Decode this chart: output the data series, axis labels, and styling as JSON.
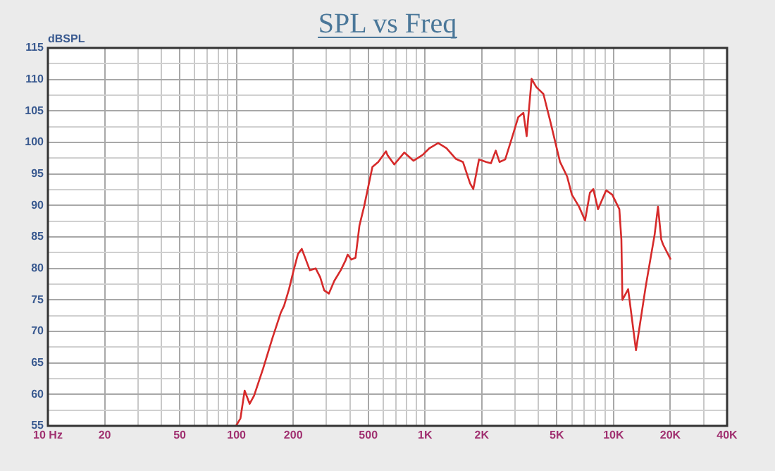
{
  "chart_data": {
    "type": "line",
    "title": "SPL vs Freq",
    "ylabel": "dBSPL",
    "log": "x",
    "grid": true,
    "legend": false,
    "xlim": [
      10,
      40000
    ],
    "ylim": [
      55,
      115
    ],
    "xticks": [
      {
        "value": 10,
        "label": "10 Hz"
      },
      20,
      {
        "value": 30,
        "label": null
      },
      {
        "value": 40,
        "label": null
      },
      50,
      {
        "value": 60,
        "label": null
      },
      {
        "value": 70,
        "label": null
      },
      {
        "value": 80,
        "label": null
      },
      {
        "value": 90,
        "label": null
      },
      100,
      200,
      {
        "value": 300,
        "label": null
      },
      {
        "value": 400,
        "label": null
      },
      500,
      {
        "value": 600,
        "label": null
      },
      {
        "value": 700,
        "label": null
      },
      {
        "value": 800,
        "label": null
      },
      {
        "value": 900,
        "label": null
      },
      {
        "value": 1000,
        "label": "1K"
      },
      {
        "value": 2000,
        "label": "2K"
      },
      {
        "value": 3000,
        "label": null
      },
      {
        "value": 4000,
        "label": null
      },
      {
        "value": 5000,
        "label": "5K"
      },
      {
        "value": 6000,
        "label": null
      },
      {
        "value": 7000,
        "label": null
      },
      {
        "value": 8000,
        "label": null
      },
      {
        "value": 9000,
        "label": null
      },
      {
        "value": 10000,
        "label": "10K"
      },
      {
        "value": 20000,
        "label": "20K"
      },
      {
        "value": 30000,
        "label": null
      },
      {
        "value": 40000,
        "label": "40K"
      }
    ],
    "yticks": [
      55,
      {
        "value": 57.5,
        "label": null
      },
      60,
      {
        "value": 62.5,
        "label": null
      },
      65,
      {
        "value": 67.5,
        "label": null
      },
      70,
      {
        "value": 72.5,
        "label": null
      },
      75,
      {
        "value": 77.5,
        "label": null
      },
      80,
      {
        "value": 82.5,
        "label": null
      },
      85,
      {
        "value": 87.5,
        "label": null
      },
      90,
      {
        "value": 92.5,
        "label": null
      },
      95,
      {
        "value": 97.5,
        "label": null
      },
      100,
      {
        "value": 102.5,
        "label": null
      },
      105,
      {
        "value": 107.5,
        "label": null
      },
      110,
      {
        "value": 112.5,
        "label": null
      },
      115
    ],
    "series": [
      {
        "color": "#d62a2a",
        "x": [
          99.5,
          105,
          110.5,
          117.5,
          124,
          138.5,
          155,
          172,
          179,
          190,
          201,
          212,
          222,
          232,
          245,
          263,
          278,
          292,
          309,
          330,
          357,
          378,
          389,
          407,
          428,
          449,
          475,
          526,
          565,
          621,
          632,
          687,
          776,
          869,
          970,
          1057,
          1174,
          1299,
          1455,
          1589,
          1734,
          1803,
          1934,
          2112,
          2237,
          2372,
          2483,
          2662,
          2910,
          3120,
          3325,
          3460,
          3675,
          3890,
          4245,
          4630,
          5200,
          5670,
          6010,
          6560,
          7060,
          7490,
          7810,
          8270,
          9130,
          9840,
          10730,
          11000,
          11140,
          11950,
          13150,
          14800,
          16500,
          17200,
          17900,
          18300,
          20100
        ],
        "values": [
          55,
          56.2,
          60.6,
          58.5,
          59.8,
          64.1,
          68.9,
          73,
          74.1,
          76.7,
          79.7,
          82.3,
          83.1,
          81.6,
          79.7,
          80,
          78.6,
          76.5,
          76,
          78,
          79.7,
          81.2,
          82.2,
          81.4,
          81.7,
          86.8,
          89.8,
          96.1,
          96.9,
          98.6,
          98,
          96.5,
          98.4,
          97.1,
          98,
          99.1,
          99.9,
          99.1,
          97.4,
          96.9,
          93.5,
          92.6,
          97.3,
          96.9,
          96.7,
          98.7,
          96.9,
          97.3,
          101,
          104,
          104.7,
          101,
          110.1,
          108.8,
          107.7,
          103.2,
          96.9,
          94.6,
          91.7,
          89.8,
          87.6,
          92,
          92.6,
          89.4,
          92.4,
          91.7,
          89.4,
          84.6,
          75,
          76.7,
          67,
          77.1,
          85.3,
          89.8,
          84.6,
          83.8,
          81.4
        ]
      }
    ]
  }
}
